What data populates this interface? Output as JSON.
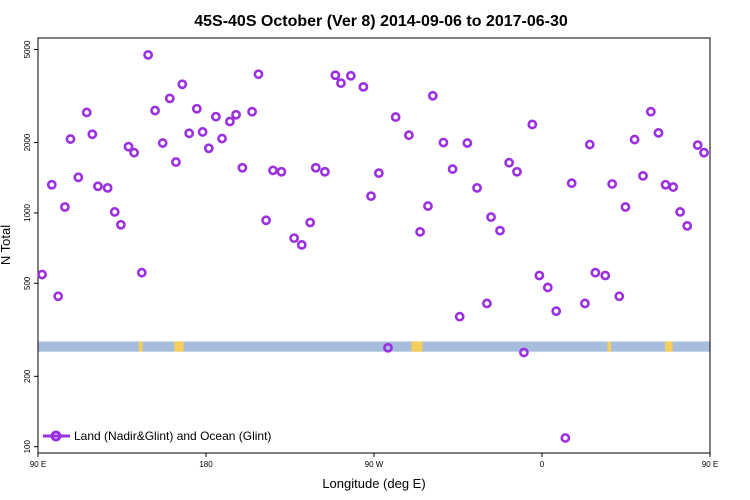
{
  "chart_data": {
    "type": "scatter",
    "title": "45S-40S October (Ver 8)   2014-09-06 to 2017-06-30",
    "xlabel": "Longitude (deg E)",
    "ylabel": "N Total",
    "y_scale": "log",
    "xlim": [
      90,
      450
    ],
    "ylim": [
      94,
      5600
    ],
    "x_ticks": [
      {
        "value": 90,
        "label": "90 E"
      },
      {
        "value": 180,
        "label": "180"
      },
      {
        "value": 270,
        "label": "90 W"
      },
      {
        "value": 360,
        "label": "0"
      },
      {
        "value": 450,
        "label": "90 E"
      },
      {
        "value": 540,
        "label": "180"
      }
    ],
    "y_ticks": [
      {
        "value": 100,
        "label": "100"
      },
      {
        "value": 200,
        "label": "200"
      },
      {
        "value": 500,
        "label": "500"
      },
      {
        "value": 1000,
        "label": "1000"
      },
      {
        "value": 2000,
        "label": "2000"
      },
      {
        "value": 5000,
        "label": "5000"
      }
    ],
    "grid": false,
    "legend": {
      "position": "bottom-left",
      "entries": [
        "Land (Nadir&Glint) and Ocean (Glint)"
      ]
    },
    "series": [
      {
        "name": "Land (Nadir&Glint) and Ocean (Glint)",
        "color": "#9b30e0",
        "points": [
          [
            92.2,
            545
          ],
          [
            97.4,
            1320
          ],
          [
            100.8,
            440
          ],
          [
            104.4,
            1060
          ],
          [
            107.4,
            2070
          ],
          [
            111.6,
            1420
          ],
          [
            116.1,
            2690
          ],
          [
            119.1,
            2170
          ],
          [
            122.1,
            1300
          ],
          [
            127.3,
            1280
          ],
          [
            131.1,
            1010
          ],
          [
            134.4,
            890
          ],
          [
            138.5,
            1920
          ],
          [
            141.5,
            1810
          ],
          [
            145.6,
            555
          ],
          [
            149.0,
            4740
          ],
          [
            152.7,
            2740
          ],
          [
            156.8,
            1990
          ],
          [
            160.6,
            3090
          ],
          [
            163.9,
            1650
          ],
          [
            167.3,
            3550
          ],
          [
            171.0,
            2190
          ],
          [
            175.1,
            2790
          ],
          [
            178.2,
            2220
          ],
          [
            181.5,
            1890
          ],
          [
            185.3,
            2580
          ],
          [
            188.6,
            2080
          ],
          [
            192.8,
            2460
          ],
          [
            196.1,
            2630
          ],
          [
            199.5,
            1560
          ],
          [
            204.7,
            2710
          ],
          [
            208.1,
            3920
          ],
          [
            212.2,
            930
          ],
          [
            215.9,
            1520
          ],
          [
            220.4,
            1500
          ],
          [
            227.2,
            780
          ],
          [
            231.3,
            730
          ],
          [
            235.8,
            910
          ],
          [
            238.8,
            1560
          ],
          [
            243.7,
            1500
          ],
          [
            249.3,
            3880
          ],
          [
            252.3,
            3590
          ],
          [
            257.6,
            3860
          ],
          [
            264.3,
            3460
          ],
          [
            268.4,
            1180
          ],
          [
            272.6,
            1480
          ],
          [
            277.5,
            265
          ],
          [
            281.6,
            2570
          ],
          [
            288.7,
            2150
          ],
          [
            294.7,
            830
          ],
          [
            298.9,
            1070
          ],
          [
            301.5,
            3170
          ],
          [
            307.2,
            2000
          ],
          [
            312.1,
            1540
          ],
          [
            315.9,
            360
          ],
          [
            320.0,
            1990
          ],
          [
            325.2,
            1280
          ],
          [
            330.5,
            410
          ],
          [
            332.7,
            960
          ],
          [
            337.5,
            840
          ],
          [
            342.4,
            1640
          ],
          [
            346.6,
            1500
          ],
          [
            350.3,
            253
          ],
          [
            354.8,
            2390
          ],
          [
            358.6,
            540
          ],
          [
            363.1,
            480
          ],
          [
            367.6,
            380
          ],
          [
            372.5,
            109
          ],
          [
            375.9,
            1340
          ],
          [
            383.0,
            410
          ],
          [
            385.6,
            1960
          ],
          [
            388.6,
            555
          ],
          [
            393.9,
            540
          ],
          [
            397.6,
            1330
          ],
          [
            401.4,
            440
          ],
          [
            404.7,
            1060
          ],
          [
            409.6,
            2060
          ],
          [
            414.1,
            1440
          ],
          [
            418.3,
            2710
          ],
          [
            422.4,
            2200
          ],
          [
            426.2,
            1320
          ],
          [
            430.3,
            1290
          ],
          [
            434.0,
            1010
          ],
          [
            437.8,
            880
          ],
          [
            443.4,
            1950
          ],
          [
            446.8,
            1810
          ],
          [
            450.9,
            555
          ],
          [
            455.1,
            4740
          ],
          [
            458.4,
            2740
          ],
          [
            462.2,
            1990
          ]
        ]
      }
    ],
    "band": {
      "y_range": [
        255,
        282
      ],
      "color": "#a6bddd",
      "yellow_color": "#f5cf5b",
      "yellow_x": [
        [
          144,
          146
        ],
        [
          163,
          168
        ],
        [
          290,
          296
        ],
        [
          395,
          397
        ],
        [
          426,
          430
        ]
      ]
    }
  }
}
